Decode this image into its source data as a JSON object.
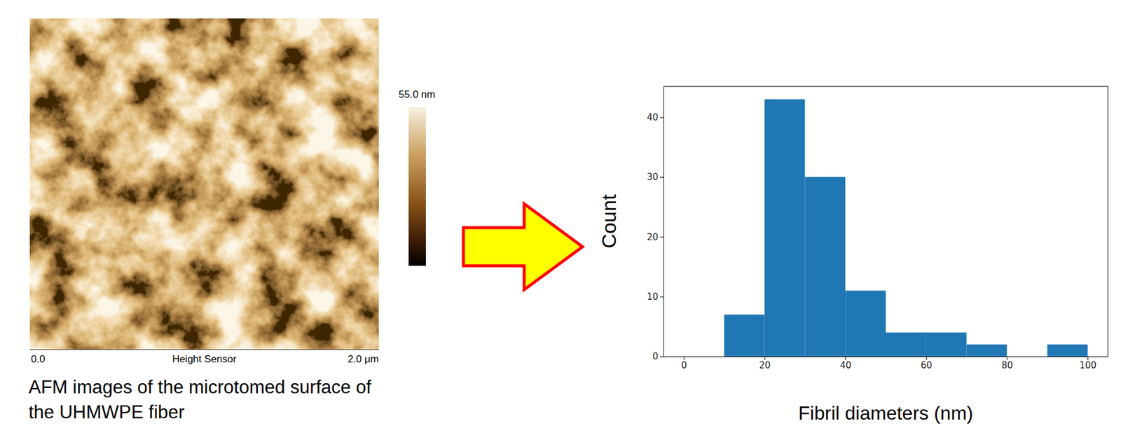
{
  "chart_data": {
    "type": "histogram",
    "x_label": "Fibril diameters (nm)",
    "y_label": "Count",
    "bins": [
      0,
      10,
      20,
      30,
      40,
      50,
      60,
      70,
      80,
      90,
      100
    ],
    "values": [
      0,
      7,
      43,
      30,
      11,
      4,
      4,
      2,
      0,
      2
    ],
    "color": "#1f77b4",
    "xlim": [
      -5,
      105
    ],
    "xticks": [
      0,
      20,
      40,
      60,
      80,
      100
    ],
    "ylim": [
      0,
      45.15
    ],
    "yticks": [
      0,
      10,
      20,
      30,
      40
    ],
    "grid": false
  },
  "afm_image": {
    "caption": "AFM images of the microtomed surface of the UHMWPE fiber",
    "colorbar_label": "55.0 nm",
    "x_start": "0.0",
    "channel": "Height Sensor",
    "x_end": "2.0 μm"
  }
}
